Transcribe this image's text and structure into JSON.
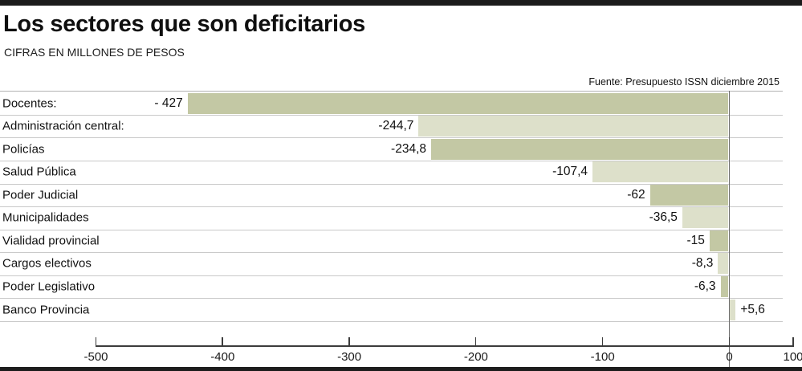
{
  "header": {
    "title": "Los sectores que son deficitarios",
    "subtitle": "CIFRAS EN MILLONES DE PESOS",
    "source": "Fuente: Presupuesto ISSN diciembre 2015"
  },
  "chart_data": {
    "type": "bar",
    "orientation": "horizontal",
    "title": "Los sectores que son deficitarios",
    "subtitle": "CIFRAS EN MILLONES DE PESOS",
    "source": "Fuente: Presupuesto ISSN diciembre 2015",
    "unit": "millones de pesos",
    "categories": [
      "Docentes:",
      "Administración central:",
      "Policías",
      "Salud Pública",
      "Poder Judicial",
      "Municipalidades",
      "Vialidad provincial",
      "Cargos electivos",
      "Poder Legislativo",
      "Banco Provincia"
    ],
    "values": [
      -427,
      -244.7,
      -234.8,
      -107.4,
      -62,
      -36.5,
      -15,
      -8.3,
      -6.3,
      5.6
    ],
    "value_labels": [
      "- 427",
      "-244,7",
      "-234,8",
      "-107,4",
      "-62",
      "-36,5",
      "-15",
      "-8,3",
      "-6,3",
      "+5,6"
    ],
    "xlim": [
      -500,
      100
    ],
    "x_ticks": [
      -500,
      -400,
      -300,
      -200,
      -100,
      0,
      100
    ],
    "x_tick_labels": [
      "-500",
      "-400",
      "-300",
      "-200",
      "-100",
      "0",
      "100"
    ],
    "axis_note": "right end of axis truncated; 100 tick drawn at axis end",
    "grid": "light horizontal row separators, vertical zero line",
    "legend": "none",
    "colors": {
      "bar_dark": "#c3c8a4",
      "bar_light": "#dde0ca",
      "separator": "#c9c9c9",
      "axis": "#3c3c3c",
      "frame_bars": "#1c1c1c",
      "background": "#ffffff"
    }
  }
}
